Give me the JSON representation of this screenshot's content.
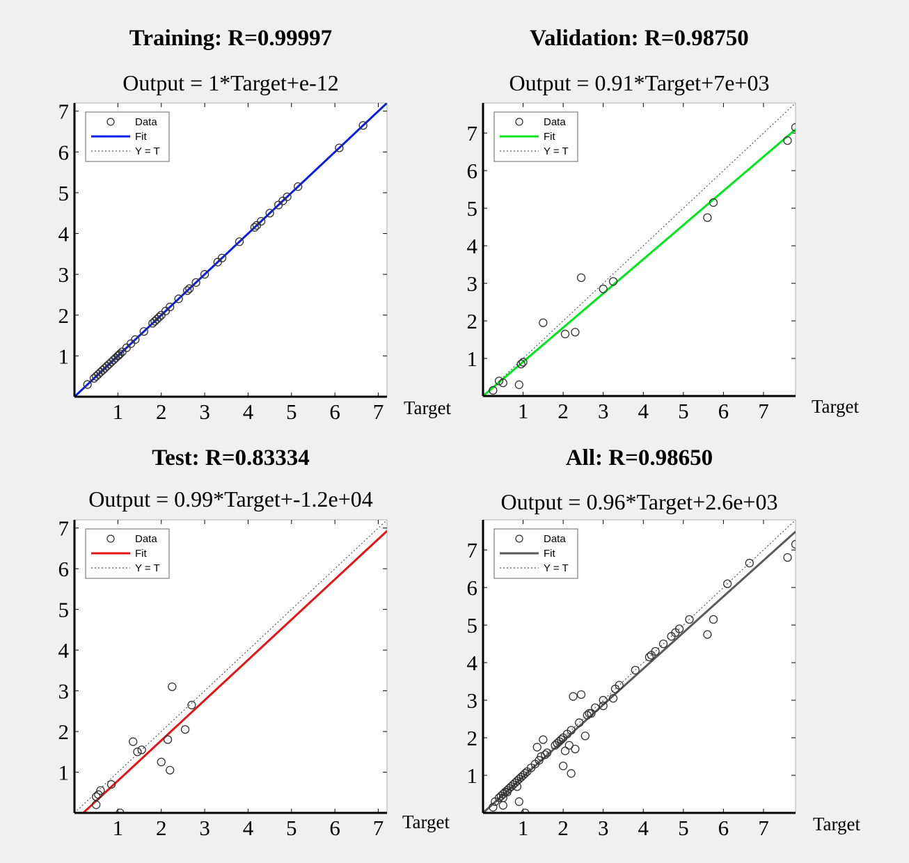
{
  "chart_data": [
    {
      "type": "scatter",
      "title": "Training: R=0.99997",
      "subtitle": "Output = 1*Target+e-12",
      "xlabel": "Target",
      "ylabel": "",
      "fit_color": "#0a1ee6",
      "legend": [
        "Data",
        "Fit",
        "Y = T"
      ],
      "legend_placement": "top-left",
      "xlim": [
        0,
        7.2
      ],
      "ylim": [
        0,
        7.2
      ],
      "xticks": [
        1,
        2,
        3,
        4,
        5,
        6,
        7
      ],
      "yticks": [
        1,
        2,
        3,
        4,
        5,
        6,
        7
      ],
      "fit": {
        "slope": 1.0,
        "intercept": 0.0
      },
      "points": [
        [
          0.3,
          0.3
        ],
        [
          0.45,
          0.45
        ],
        [
          0.5,
          0.5
        ],
        [
          0.55,
          0.55
        ],
        [
          0.6,
          0.6
        ],
        [
          0.65,
          0.65
        ],
        [
          0.7,
          0.7
        ],
        [
          0.75,
          0.75
        ],
        [
          0.8,
          0.8
        ],
        [
          0.85,
          0.85
        ],
        [
          0.9,
          0.9
        ],
        [
          0.95,
          0.95
        ],
        [
          1.0,
          1.0
        ],
        [
          1.02,
          1.02
        ],
        [
          1.05,
          1.05
        ],
        [
          1.1,
          1.1
        ],
        [
          1.2,
          1.2
        ],
        [
          1.3,
          1.3
        ],
        [
          1.4,
          1.4
        ],
        [
          1.6,
          1.6
        ],
        [
          1.8,
          1.8
        ],
        [
          1.85,
          1.85
        ],
        [
          1.9,
          1.9
        ],
        [
          1.95,
          1.95
        ],
        [
          2.0,
          2.0
        ],
        [
          2.1,
          2.1
        ],
        [
          2.2,
          2.2
        ],
        [
          2.4,
          2.4
        ],
        [
          2.6,
          2.6
        ],
        [
          2.65,
          2.65
        ],
        [
          2.8,
          2.8
        ],
        [
          3.0,
          3.0
        ],
        [
          3.3,
          3.3
        ],
        [
          3.4,
          3.4
        ],
        [
          3.8,
          3.8
        ],
        [
          4.15,
          4.15
        ],
        [
          4.2,
          4.2
        ],
        [
          4.3,
          4.3
        ],
        [
          4.5,
          4.5
        ],
        [
          4.7,
          4.7
        ],
        [
          4.8,
          4.8
        ],
        [
          4.9,
          4.9
        ],
        [
          5.15,
          5.15
        ],
        [
          6.1,
          6.1
        ],
        [
          6.65,
          6.65
        ]
      ]
    },
    {
      "type": "scatter",
      "title": "Validation: R=0.98750",
      "subtitle": "Output = 0.91*Target+7e+03",
      "xlabel": "Target",
      "ylabel": "",
      "fit_color": "#00e61e",
      "legend": [
        "Data",
        "Fit",
        "Y = T"
      ],
      "legend_placement": "top-left",
      "xlim": [
        0,
        7.8
      ],
      "ylim": [
        0,
        7.8
      ],
      "xticks": [
        1,
        2,
        3,
        4,
        5,
        6,
        7
      ],
      "yticks": [
        1,
        2,
        3,
        4,
        5,
        6,
        7
      ],
      "fit": {
        "slope": 0.91,
        "intercept": 0.0
      },
      "points": [
        [
          0.25,
          0.15
        ],
        [
          0.4,
          0.4
        ],
        [
          0.5,
          0.35
        ],
        [
          0.9,
          0.3
        ],
        [
          0.95,
          0.85
        ],
        [
          1.0,
          0.9
        ],
        [
          1.5,
          1.95
        ],
        [
          2.05,
          1.65
        ],
        [
          2.3,
          1.7
        ],
        [
          2.45,
          3.15
        ],
        [
          3.0,
          2.85
        ],
        [
          3.25,
          3.05
        ],
        [
          5.6,
          4.75
        ],
        [
          5.75,
          5.15
        ],
        [
          7.6,
          6.8
        ],
        [
          7.8,
          7.15
        ]
      ]
    },
    {
      "type": "scatter",
      "title": "Test: R=0.83334",
      "subtitle": "Output = 0.99*Target+-1.2e+04",
      "xlabel": "Target",
      "ylabel": "",
      "fit_color": "#e61414",
      "legend": [
        "Data",
        "Fit",
        "Y = T"
      ],
      "legend_placement": "top-left",
      "xlim": [
        0,
        7.2
      ],
      "ylim": [
        0,
        7.2
      ],
      "xticks": [
        1,
        2,
        3,
        4,
        5,
        6,
        7
      ],
      "yticks": [
        1,
        2,
        3,
        4,
        5,
        6,
        7
      ],
      "fit": {
        "slope": 0.99,
        "intercept": -0.2
      },
      "points": [
        [
          0.5,
          0.2
        ],
        [
          0.5,
          0.4
        ],
        [
          0.55,
          0.45
        ],
        [
          0.6,
          0.55
        ],
        [
          0.85,
          0.7
        ],
        [
          1.05,
          0.0
        ],
        [
          1.35,
          1.75
        ],
        [
          1.45,
          1.5
        ],
        [
          1.55,
          1.55
        ],
        [
          2.0,
          1.25
        ],
        [
          2.15,
          1.8
        ],
        [
          2.2,
          1.05
        ],
        [
          2.25,
          3.1
        ],
        [
          2.55,
          2.05
        ],
        [
          2.7,
          2.65
        ]
      ]
    },
    {
      "type": "scatter",
      "title": "All: R=0.98650",
      "subtitle": "Output = 0.96*Target+2.6e+03",
      "xlabel": "Target",
      "ylabel": "",
      "fit_color": "#5a5a5a",
      "legend": [
        "Data",
        "Fit",
        "Y = T"
      ],
      "legend_placement": "top-left",
      "xlim": [
        0,
        7.8
      ],
      "ylim": [
        0,
        7.8
      ],
      "xticks": [
        1,
        2,
        3,
        4,
        5,
        6,
        7
      ],
      "yticks": [
        1,
        2,
        3,
        4,
        5,
        6,
        7
      ],
      "fit": {
        "slope": 0.96,
        "intercept": 0.0
      },
      "points": [
        [
          0.25,
          0.15
        ],
        [
          0.3,
          0.3
        ],
        [
          0.4,
          0.4
        ],
        [
          0.45,
          0.45
        ],
        [
          0.5,
          0.5
        ],
        [
          0.5,
          0.2
        ],
        [
          0.5,
          0.4
        ],
        [
          0.55,
          0.55
        ],
        [
          0.6,
          0.55
        ],
        [
          0.6,
          0.6
        ],
        [
          0.65,
          0.65
        ],
        [
          0.7,
          0.7
        ],
        [
          0.75,
          0.75
        ],
        [
          0.8,
          0.8
        ],
        [
          0.85,
          0.85
        ],
        [
          0.85,
          0.7
        ],
        [
          0.9,
          0.9
        ],
        [
          0.9,
          0.3
        ],
        [
          0.95,
          0.95
        ],
        [
          1.0,
          1.0
        ],
        [
          1.05,
          1.05
        ],
        [
          1.05,
          0.0
        ],
        [
          1.1,
          1.1
        ],
        [
          1.2,
          1.2
        ],
        [
          1.3,
          1.3
        ],
        [
          1.35,
          1.75
        ],
        [
          1.4,
          1.4
        ],
        [
          1.45,
          1.5
        ],
        [
          1.5,
          1.95
        ],
        [
          1.55,
          1.55
        ],
        [
          1.6,
          1.6
        ],
        [
          1.8,
          1.8
        ],
        [
          1.85,
          1.85
        ],
        [
          1.9,
          1.9
        ],
        [
          1.95,
          1.95
        ],
        [
          2.0,
          2.0
        ],
        [
          2.0,
          1.25
        ],
        [
          2.05,
          1.65
        ],
        [
          2.1,
          2.1
        ],
        [
          2.15,
          1.8
        ],
        [
          2.2,
          2.2
        ],
        [
          2.2,
          1.05
        ],
        [
          2.25,
          3.1
        ],
        [
          2.3,
          1.7
        ],
        [
          2.4,
          2.4
        ],
        [
          2.45,
          3.15
        ],
        [
          2.55,
          2.05
        ],
        [
          2.6,
          2.6
        ],
        [
          2.65,
          2.65
        ],
        [
          2.7,
          2.65
        ],
        [
          2.8,
          2.8
        ],
        [
          3.0,
          3.0
        ],
        [
          3.0,
          2.85
        ],
        [
          3.25,
          3.05
        ],
        [
          3.3,
          3.3
        ],
        [
          3.4,
          3.4
        ],
        [
          3.8,
          3.8
        ],
        [
          4.15,
          4.15
        ],
        [
          4.2,
          4.2
        ],
        [
          4.3,
          4.3
        ],
        [
          4.5,
          4.5
        ],
        [
          4.7,
          4.7
        ],
        [
          4.8,
          4.8
        ],
        [
          4.9,
          4.9
        ],
        [
          5.15,
          5.15
        ],
        [
          5.6,
          4.75
        ],
        [
          5.75,
          5.15
        ],
        [
          6.1,
          6.1
        ],
        [
          6.65,
          6.65
        ],
        [
          7.6,
          6.8
        ],
        [
          7.8,
          7.15
        ]
      ]
    }
  ]
}
